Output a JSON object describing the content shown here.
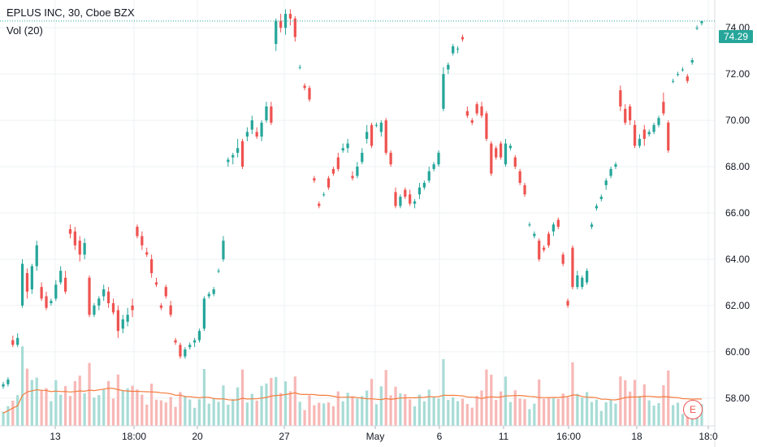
{
  "legend": {
    "symbol_line": "EPLUS INC, 30, Cboe BZX",
    "volume_line": "Vol (20)"
  },
  "last_price_label": "74.29",
  "earnings_marker": "E",
  "colors": {
    "up": "#26a69a",
    "down": "#ef5350",
    "vol_up": "#a8dcd6",
    "vol_down": "#f7b8b6",
    "ma": "#f57c3c",
    "grid": "#eef0f3",
    "axis_text": "#131722"
  },
  "chart_data": {
    "type": "candlestick",
    "title": "EPLUS INC, 30, Cboe BZX",
    "y_axis": {
      "ticks": [
        "58.00",
        "60.00",
        "62.00",
        "64.00",
        "66.00",
        "68.00",
        "70.00",
        "72.00",
        "74.00"
      ],
      "ylim": [
        56.8,
        75.2
      ],
      "position": "right"
    },
    "x_axis": {
      "ticks": [
        "13",
        "18:00",
        "20",
        "27",
        "May",
        "6",
        "11",
        "16:00",
        "18",
        "18:0"
      ]
    },
    "last_price": 74.29,
    "volume_ma_period": 20,
    "candles": [
      [
        58.5,
        58.7,
        58.4,
        58.6
      ],
      [
        58.6,
        58.9,
        58.5,
        58.8
      ],
      [
        60.5,
        60.7,
        60.2,
        60.3
      ],
      [
        60.3,
        60.8,
        60.2,
        60.6
      ],
      [
        62.0,
        64.0,
        61.9,
        63.8
      ],
      [
        63.4,
        63.6,
        62.3,
        62.6
      ],
      [
        62.7,
        63.8,
        62.5,
        63.7
      ],
      [
        63.7,
        64.8,
        63.5,
        64.6
      ],
      [
        62.8,
        63.0,
        62.2,
        62.3
      ],
      [
        62.4,
        62.6,
        61.8,
        61.9
      ],
      [
        62.1,
        62.3,
        62.0,
        62.2
      ],
      [
        62.3,
        63.1,
        62.2,
        62.9
      ],
      [
        63.0,
        63.7,
        62.9,
        63.5
      ],
      [
        63.2,
        63.5,
        62.5,
        62.6
      ],
      [
        65.3,
        65.5,
        64.9,
        65.1
      ],
      [
        65.2,
        65.4,
        64.4,
        64.6
      ],
      [
        64.8,
        65.0,
        63.9,
        64.2
      ],
      [
        64.2,
        64.9,
        64.0,
        64.7
      ],
      [
        63.2,
        63.3,
        61.5,
        61.6
      ],
      [
        61.6,
        62.1,
        61.5,
        62.0
      ],
      [
        62.0,
        62.4,
        61.8,
        62.3
      ],
      [
        62.4,
        62.9,
        62.2,
        62.7
      ],
      [
        62.6,
        62.8,
        61.9,
        62.1
      ],
      [
        62.1,
        62.3,
        61.6,
        61.7
      ],
      [
        61.8,
        62.0,
        60.6,
        60.9
      ],
      [
        61.0,
        61.6,
        60.8,
        61.4
      ],
      [
        61.3,
        61.9,
        61.1,
        61.6
      ],
      [
        62.0,
        62.3,
        61.5,
        61.8
      ],
      [
        65.4,
        65.5,
        64.9,
        65.0
      ],
      [
        65.0,
        65.2,
        64.4,
        64.6
      ],
      [
        64.3,
        64.5,
        64.1,
        64.2
      ],
      [
        64.0,
        64.2,
        63.2,
        63.4
      ],
      [
        63.0,
        63.2,
        62.8,
        62.9
      ],
      [
        62.0,
        62.1,
        61.8,
        61.9
      ],
      [
        62.8,
        62.9,
        62.3,
        62.4
      ],
      [
        62.0,
        62.2,
        61.5,
        61.6
      ],
      [
        60.5,
        60.6,
        60.3,
        60.4
      ],
      [
        60.3,
        60.4,
        59.7,
        59.8
      ],
      [
        59.8,
        60.2,
        59.7,
        60.1
      ],
      [
        60.2,
        60.4,
        60.1,
        60.3
      ],
      [
        60.4,
        60.6,
        60.2,
        60.5
      ],
      [
        60.5,
        61.0,
        60.4,
        60.9
      ],
      [
        61.0,
        62.4,
        60.9,
        62.3
      ],
      [
        62.4,
        62.6,
        62.3,
        62.5
      ],
      [
        62.5,
        62.8,
        62.4,
        62.7
      ],
      [
        63.5,
        63.6,
        63.4,
        63.5
      ],
      [
        64.0,
        65.0,
        63.9,
        64.8
      ],
      [
        68.2,
        68.4,
        68.0,
        68.3
      ],
      [
        68.4,
        68.6,
        68.1,
        68.5
      ],
      [
        68.6,
        69.2,
        68.4,
        68.8
      ],
      [
        69.1,
        69.2,
        67.9,
        68.0
      ],
      [
        69.3,
        69.7,
        69.1,
        69.5
      ],
      [
        69.6,
        70.2,
        69.4,
        70.0
      ],
      [
        69.5,
        69.7,
        69.2,
        69.3
      ],
      [
        69.3,
        70.0,
        69.1,
        69.9
      ],
      [
        70.0,
        70.8,
        69.9,
        70.6
      ],
      [
        70.6,
        70.8,
        69.8,
        69.9
      ],
      [
        73.3,
        74.4,
        73.0,
        74.3
      ],
      [
        74.3,
        74.6,
        73.8,
        74.0
      ],
      [
        74.0,
        74.8,
        73.7,
        74.6
      ],
      [
        74.6,
        74.8,
        74.1,
        74.4
      ],
      [
        74.4,
        74.5,
        73.4,
        73.6
      ],
      [
        72.3,
        72.4,
        72.2,
        72.3
      ],
      [
        71.5,
        71.6,
        71.3,
        71.4
      ],
      [
        71.4,
        71.5,
        70.8,
        70.9
      ],
      [
        67.5,
        67.6,
        67.3,
        67.4
      ],
      [
        66.4,
        66.5,
        66.2,
        66.3
      ],
      [
        66.8,
        66.9,
        66.7,
        66.8
      ],
      [
        67.5,
        67.6,
        67.0,
        67.1
      ],
      [
        67.9,
        68.0,
        67.6,
        67.7
      ],
      [
        68.4,
        68.6,
        67.8,
        67.9
      ],
      [
        68.7,
        69.0,
        68.6,
        68.8
      ],
      [
        68.8,
        69.2,
        68.6,
        69.0
      ],
      [
        67.6,
        67.8,
        67.4,
        67.5
      ],
      [
        67.6,
        68.2,
        67.5,
        68.0
      ],
      [
        68.2,
        68.8,
        68.1,
        68.6
      ],
      [
        69.2,
        69.8,
        69.0,
        69.5
      ],
      [
        69.8,
        69.9,
        68.8,
        68.9
      ],
      [
        69.8,
        69.9,
        69.7,
        69.8
      ],
      [
        69.5,
        70.0,
        69.3,
        69.9
      ],
      [
        70.0,
        70.1,
        68.5,
        68.6
      ],
      [
        68.6,
        68.7,
        68.0,
        68.1
      ],
      [
        66.9,
        67.1,
        66.2,
        66.3
      ],
      [
        66.3,
        66.8,
        66.2,
        66.7
      ],
      [
        67.0,
        67.1,
        66.6,
        66.7
      ],
      [
        66.8,
        67.0,
        66.3,
        66.4
      ],
      [
        66.4,
        66.6,
        66.2,
        66.5
      ],
      [
        66.8,
        67.3,
        66.6,
        67.1
      ],
      [
        67.1,
        67.4,
        67.0,
        67.3
      ],
      [
        67.4,
        68.0,
        67.3,
        67.8
      ],
      [
        67.9,
        68.2,
        67.8,
        68.1
      ],
      [
        68.1,
        68.7,
        68.0,
        68.6
      ],
      [
        70.5,
        72.3,
        70.4,
        72.0
      ],
      [
        72.2,
        72.5,
        72.0,
        72.4
      ],
      [
        72.9,
        73.3,
        72.8,
        73.2
      ],
      [
        73.1,
        73.2,
        72.9,
        73.1
      ],
      [
        73.6,
        73.7,
        73.4,
        73.5
      ],
      [
        70.4,
        70.6,
        70.1,
        70.2
      ],
      [
        70.0,
        70.1,
        69.8,
        69.9
      ],
      [
        70.7,
        70.8,
        70.2,
        70.3
      ],
      [
        70.6,
        70.8,
        70.1,
        70.2
      ],
      [
        70.3,
        70.4,
        69.1,
        69.2
      ],
      [
        69.0,
        69.1,
        67.6,
        67.7
      ],
      [
        68.8,
        68.9,
        68.3,
        68.4
      ],
      [
        69.0,
        69.1,
        68.3,
        68.4
      ],
      [
        68.1,
        69.2,
        68.0,
        69.0
      ],
      [
        68.8,
        69.0,
        68.7,
        68.9
      ],
      [
        68.4,
        68.5,
        67.9,
        68.0
      ],
      [
        67.8,
        67.9,
        67.2,
        67.3
      ],
      [
        67.2,
        67.3,
        66.7,
        66.8
      ],
      [
        65.5,
        65.6,
        65.4,
        65.5
      ],
      [
        65.0,
        65.2,
        64.9,
        65.1
      ],
      [
        64.8,
        64.9,
        63.9,
        64.0
      ],
      [
        64.5,
        64.6,
        64.3,
        64.4
      ],
      [
        65.1,
        65.2,
        64.5,
        64.6
      ],
      [
        65.2,
        65.6,
        65.0,
        65.5
      ],
      [
        65.7,
        65.8,
        65.3,
        65.4
      ],
      [
        64.2,
        64.3,
        63.7,
        63.8
      ],
      [
        62.2,
        62.3,
        61.9,
        62.0
      ],
      [
        64.5,
        64.6,
        62.7,
        62.8
      ],
      [
        62.8,
        63.5,
        62.7,
        63.3
      ],
      [
        62.8,
        63.3,
        62.7,
        63.2
      ],
      [
        63.0,
        63.6,
        62.9,
        63.5
      ],
      [
        65.4,
        65.6,
        65.3,
        65.5
      ],
      [
        66.2,
        66.4,
        66.1,
        66.3
      ],
      [
        66.6,
        66.8,
        66.5,
        66.7
      ],
      [
        67.2,
        67.5,
        67.0,
        67.4
      ],
      [
        67.6,
        68.0,
        67.5,
        67.9
      ],
      [
        68.0,
        68.2,
        67.9,
        68.1
      ],
      [
        71.3,
        71.5,
        70.4,
        70.6
      ],
      [
        70.5,
        70.7,
        69.8,
        69.9
      ],
      [
        70.6,
        70.7,
        69.8,
        70.0
      ],
      [
        69.8,
        70.0,
        68.8,
        68.9
      ],
      [
        68.9,
        69.4,
        68.8,
        69.2
      ],
      [
        69.6,
        69.8,
        68.9,
        69.2
      ],
      [
        69.4,
        69.6,
        69.3,
        69.5
      ],
      [
        69.5,
        69.9,
        69.4,
        69.8
      ],
      [
        69.8,
        70.2,
        69.7,
        70.1
      ],
      [
        70.8,
        71.2,
        70.2,
        70.3
      ],
      [
        69.9,
        70.0,
        68.6,
        68.7
      ],
      [
        71.7,
        71.8,
        71.6,
        71.7
      ],
      [
        72.0,
        72.1,
        71.9,
        72.0
      ],
      [
        72.2,
        72.3,
        72.1,
        72.2
      ],
      [
        71.9,
        72.0,
        71.6,
        71.7
      ],
      [
        72.5,
        72.7,
        72.4,
        72.6
      ],
      [
        74.0,
        74.1,
        73.9,
        74.0
      ],
      [
        74.2,
        74.3,
        74.1,
        74.29
      ]
    ]
  }
}
